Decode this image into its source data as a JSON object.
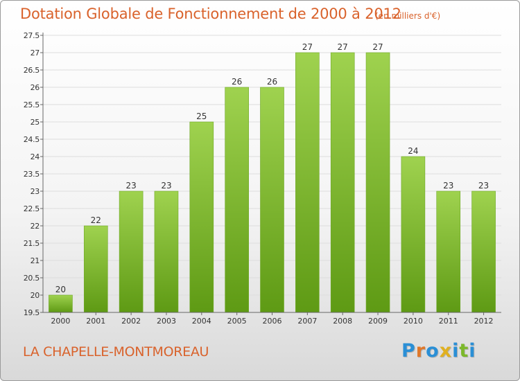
{
  "title": "Dotation Globale de Fonctionnement de 2000 à 2012",
  "subtitle": "(en milliers d'€)",
  "commune": "LA CHAPELLE-MONTMOREAU",
  "logo": {
    "text": "Proxiti",
    "letters": [
      {
        "char": "P",
        "color": "#2a8fd6"
      },
      {
        "char": "r",
        "color": "#e0782a"
      },
      {
        "char": "o",
        "color": "#2a8fd6"
      },
      {
        "char": "x",
        "color": "#e0b020"
      },
      {
        "char": "i",
        "color": "#2a8fd6"
      },
      {
        "char": "t",
        "color": "#7cb82a"
      },
      {
        "char": "i",
        "color": "#2a8fd6"
      }
    ]
  },
  "colors": {
    "accent": "#d9622b",
    "bar_top": "#9fd24f",
    "bar_bottom": "#5e9a14",
    "grid": "#dddddd",
    "axis": "#666666"
  },
  "chart_data": {
    "type": "bar",
    "title": "Dotation Globale de Fonctionnement de 2000 à 2012",
    "subtitle": "(en milliers d'€)",
    "xlabel": "",
    "ylabel": "",
    "categories": [
      "2000",
      "2001",
      "2002",
      "2003",
      "2004",
      "2005",
      "2006",
      "2007",
      "2008",
      "2009",
      "2010",
      "2011",
      "2012"
    ],
    "values": [
      20,
      22,
      23,
      23,
      25,
      26,
      26,
      27,
      27,
      27,
      24,
      23,
      23
    ],
    "data_labels": [
      "20",
      "22",
      "23",
      "23",
      "25",
      "26",
      "26",
      "27",
      "27",
      "27",
      "24",
      "23",
      "23"
    ],
    "ylim": [
      19.5,
      27.5
    ],
    "yticks": [
      19.5,
      20,
      20.5,
      21,
      21.5,
      22,
      22.5,
      23,
      23.5,
      24,
      24.5,
      25,
      25.5,
      26,
      26.5,
      27,
      27.5
    ],
    "ytick_labels": [
      "19.5",
      "20",
      "20.5",
      "21",
      "21.5",
      "22",
      "22.5",
      "23",
      "23.5",
      "24",
      "24.5",
      "25",
      "25.5",
      "26",
      "26.5",
      "27",
      "27.5"
    ],
    "grid": true,
    "legend": "none"
  }
}
